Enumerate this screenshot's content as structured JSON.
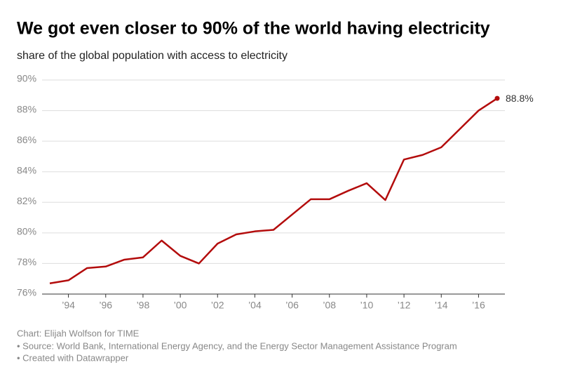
{
  "chart_data": {
    "type": "line",
    "title": "We got even closer to 90% of the world having electricity",
    "subtitle": "share of the global population with access to electricity",
    "x": [
      1993,
      1994,
      1995,
      1996,
      1997,
      1998,
      1999,
      2000,
      2001,
      2002,
      2003,
      2004,
      2005,
      2006,
      2007,
      2008,
      2009,
      2010,
      2011,
      2012,
      2013,
      2014,
      2015,
      2016,
      2017
    ],
    "values": [
      76.7,
      76.9,
      77.7,
      77.8,
      78.25,
      78.4,
      79.5,
      78.5,
      78.0,
      79.3,
      79.9,
      80.1,
      80.2,
      81.2,
      82.2,
      82.2,
      82.75,
      83.25,
      82.15,
      84.8,
      85.1,
      85.6,
      86.8,
      88.0,
      88.8
    ],
    "value_labels": [
      null,
      null,
      null,
      null,
      null,
      null,
      null,
      null,
      null,
      null,
      null,
      null,
      null,
      null,
      null,
      null,
      null,
      null,
      null,
      null,
      null,
      null,
      null,
      null,
      "88.8%"
    ],
    "color": "#b30c0c",
    "xlim": [
      1993,
      2017
    ],
    "xticks": [
      {
        "value": 1994,
        "label": "’94"
      },
      {
        "value": 1996,
        "label": "’96"
      },
      {
        "value": 1998,
        "label": "’98"
      },
      {
        "value": 2000,
        "label": "’00"
      },
      {
        "value": 2002,
        "label": "’02"
      },
      {
        "value": 2004,
        "label": "’04"
      },
      {
        "value": 2006,
        "label": "’06"
      },
      {
        "value": 2008,
        "label": "’08"
      },
      {
        "value": 2010,
        "label": "’10"
      },
      {
        "value": 2012,
        "label": "’12"
      },
      {
        "value": 2014,
        "label": "’14"
      },
      {
        "value": 2016,
        "label": "’16"
      }
    ],
    "ylim": [
      76,
      90
    ],
    "yticks": [
      {
        "value": 76,
        "label": "76%"
      },
      {
        "value": 78,
        "label": "78%"
      },
      {
        "value": 80,
        "label": "80%"
      },
      {
        "value": 82,
        "label": "82%"
      },
      {
        "value": 84,
        "label": "84%"
      },
      {
        "value": 86,
        "label": "86%"
      },
      {
        "value": 88,
        "label": "88%"
      },
      {
        "value": 90,
        "label": "90%"
      }
    ],
    "grid": true,
    "notes": [
      "Chart: Elijah Wolfson for TIME",
      "• Source: World Bank, International Energy Agency, and the Energy Sector Management Assistance Program",
      "• Created with Datawrapper"
    ]
  }
}
